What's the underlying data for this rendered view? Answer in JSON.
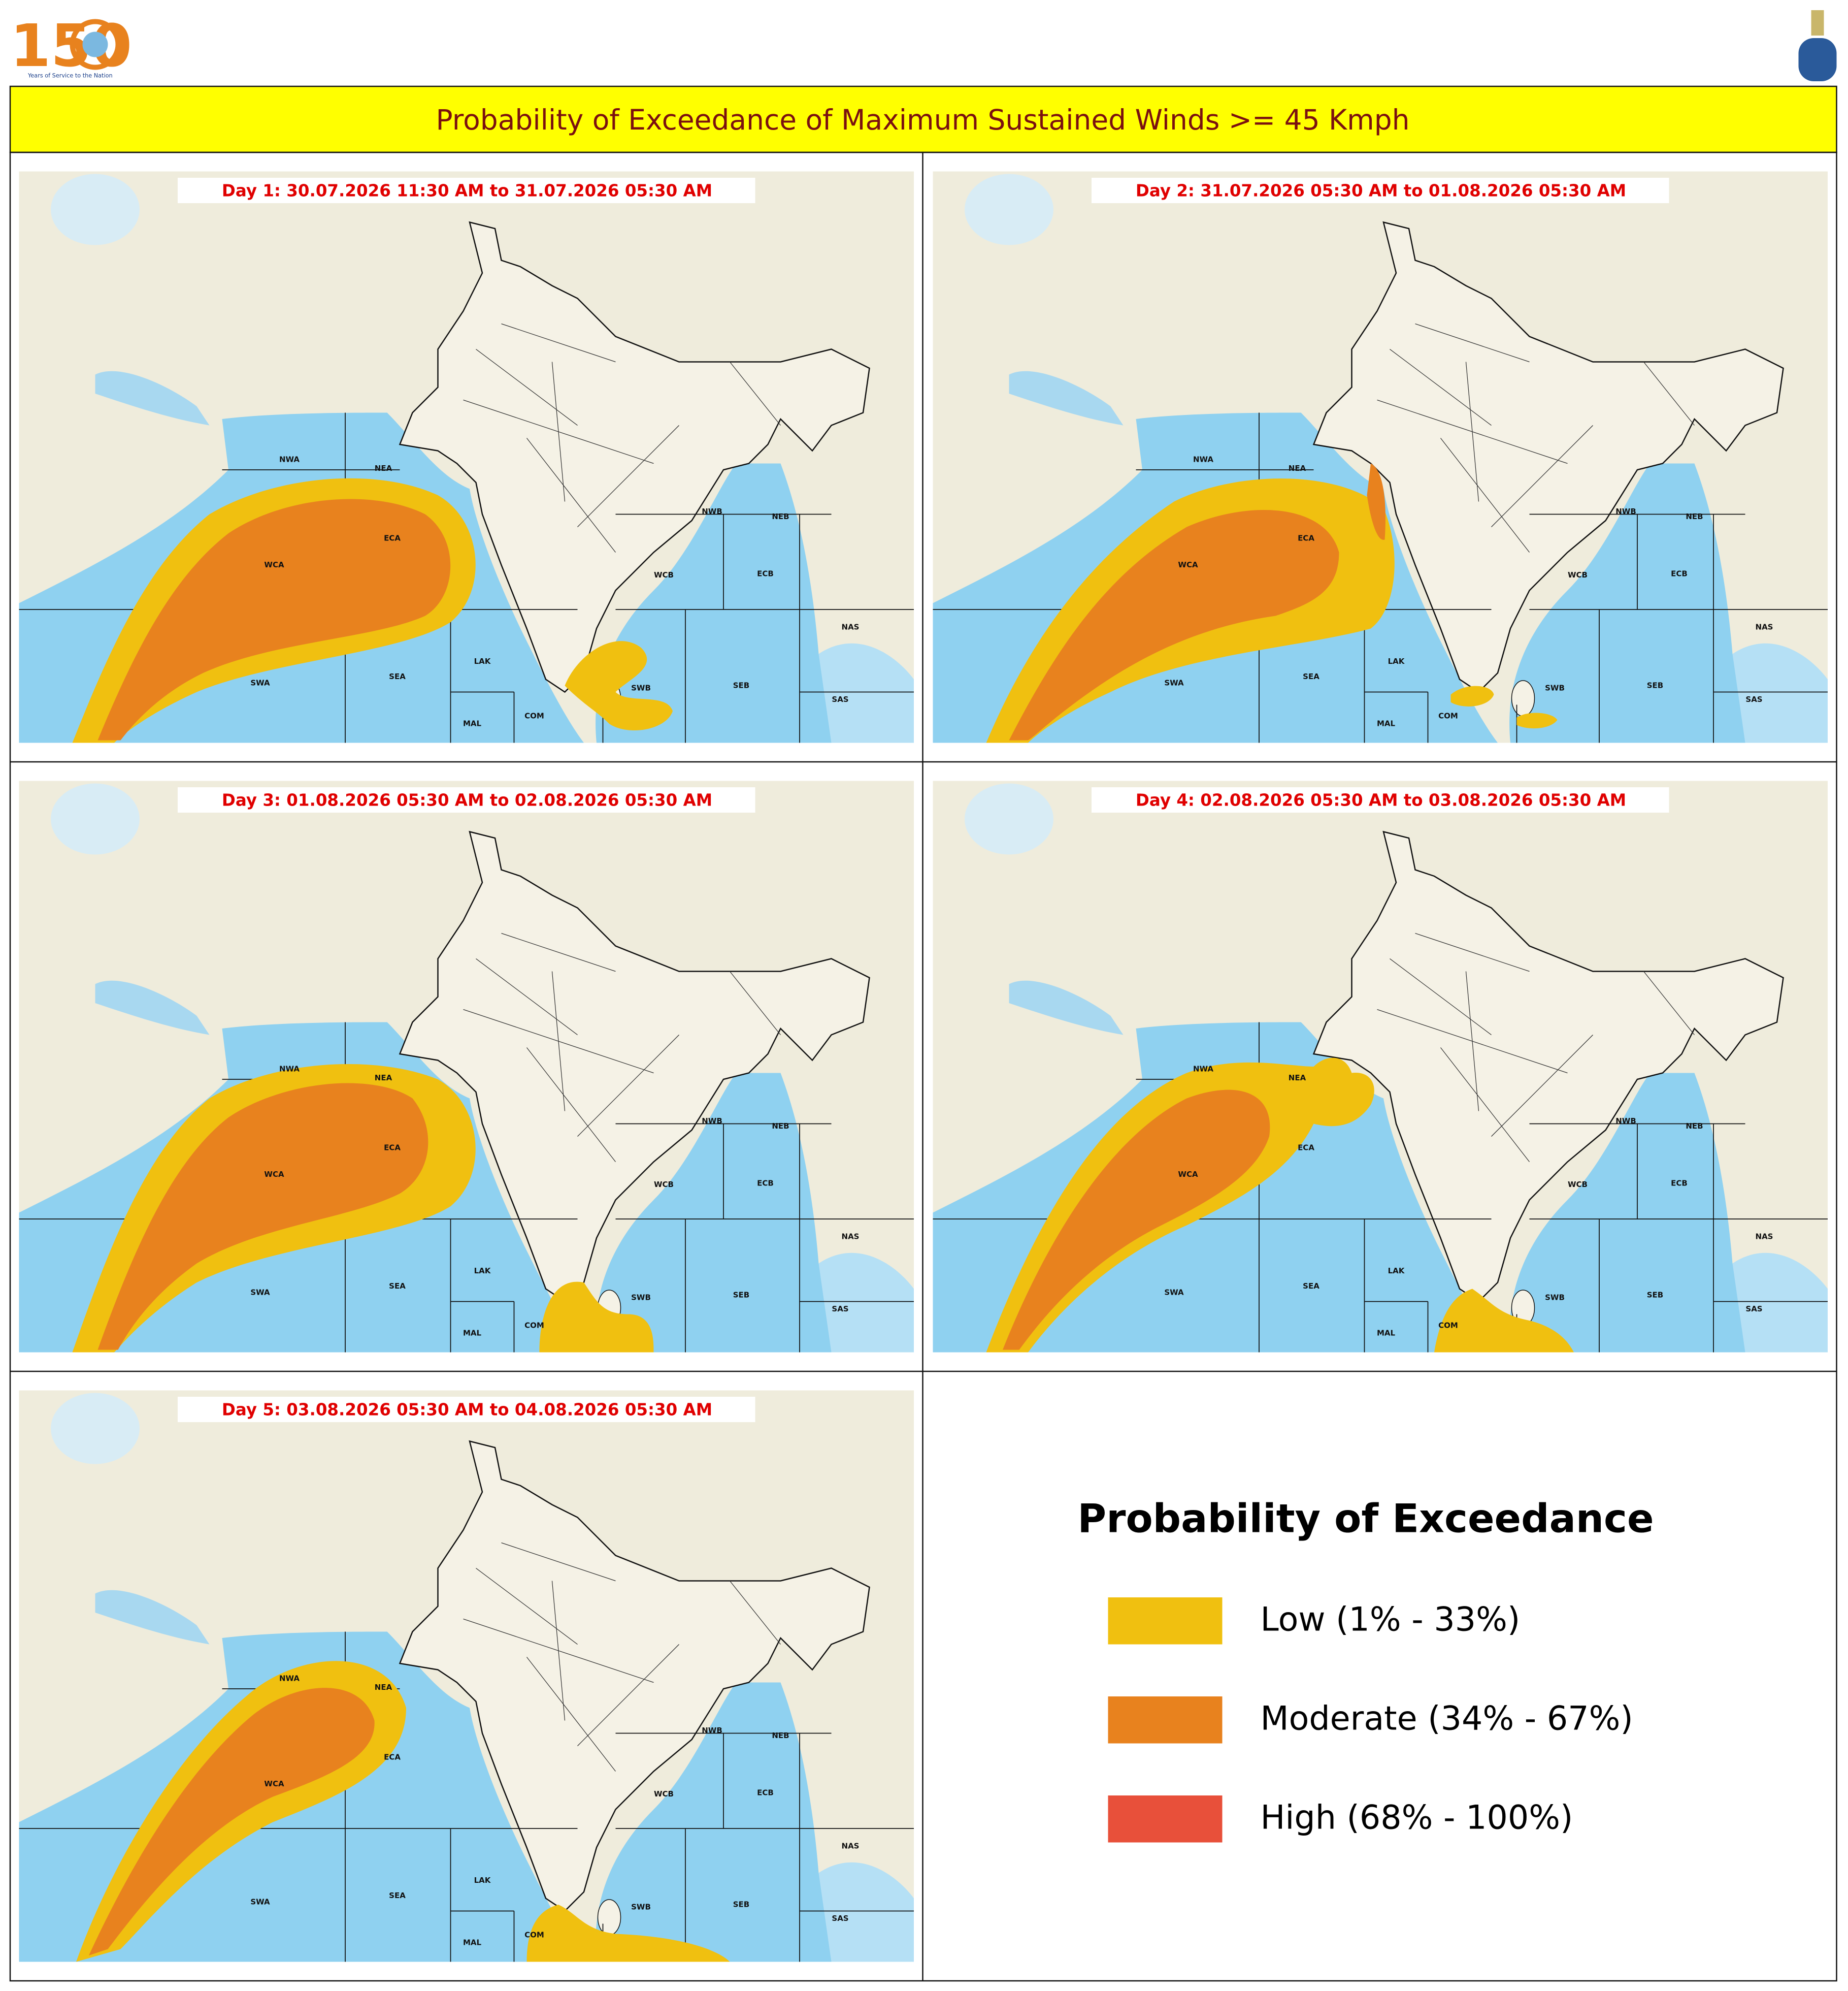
{
  "header": {
    "logo_number": "150",
    "logo_caption": "Years of Service to the Nation",
    "title": "Probability of Exceedance of Maximum Sustained Winds >= 45 Kmph"
  },
  "panels": [
    {
      "title": "Day 1: 30.07.2026 11:30 AM to 31.07.2026 05:30 AM"
    },
    {
      "title": "Day 2: 31.07.2026 05:30 AM to 01.08.2026 05:30 AM"
    },
    {
      "title": "Day 3: 01.08.2026 05:30 AM to 02.08.2026 05:30 AM"
    },
    {
      "title": "Day 4: 02.08.2026 05:30 AM to 03.08.2026 05:30 AM"
    },
    {
      "title": "Day 5: 03.08.2026 05:30 AM to 04.08.2026 05:30 AM"
    }
  ],
  "regions": [
    "NWA",
    "NEA",
    "ECA",
    "WCA",
    "SWA",
    "SEA",
    "LAK",
    "MAL",
    "COM",
    "NWB",
    "NEB",
    "WCB",
    "ECB",
    "NAS",
    "SAS",
    "SWB",
    "SEB"
  ],
  "legend": {
    "title": "Probability of Exceedance",
    "items": [
      {
        "label": "Low (1% - 33%)",
        "color": "#f0c010"
      },
      {
        "label": "Moderate (34% - 67%)",
        "color": "#e8821e"
      },
      {
        "label": "High (68% - 100%)",
        "color": "#e8503a"
      }
    ]
  }
}
